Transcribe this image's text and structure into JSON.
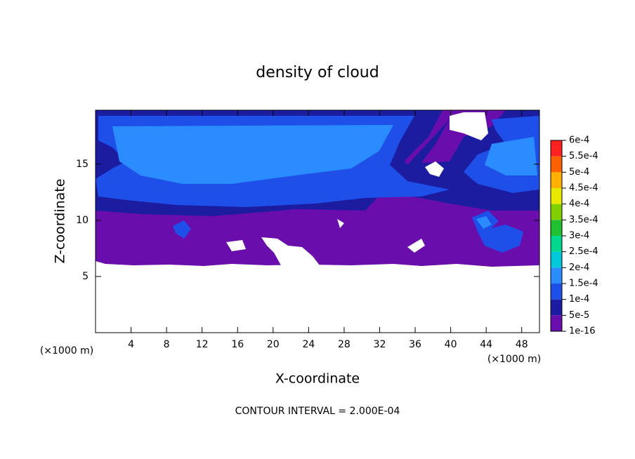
{
  "chart_data": {
    "type": "contour",
    "title": "density of cloud",
    "xlabel": "X-coordinate",
    "ylabel": "Z-coordinate",
    "unit": "(×1000 m)",
    "footer": "CONTOUR INTERVAL = 2.000E-04",
    "xlim": [
      0,
      50
    ],
    "ylim": [
      0,
      19.8
    ],
    "xticks": [
      4,
      8,
      12,
      16,
      20,
      24,
      28,
      32,
      36,
      40,
      44,
      48
    ],
    "yticks": [
      5,
      10,
      15
    ],
    "colorbar": {
      "levels": [
        {
          "value": 1e-16,
          "label": "1e-16"
        },
        {
          "value": 5e-05,
          "label": "5e-5"
        },
        {
          "value": 0.0001,
          "label": "1e-4"
        },
        {
          "value": 0.00015,
          "label": "1.5e-4"
        },
        {
          "value": 0.0002,
          "label": "2e-4"
        },
        {
          "value": 0.00025,
          "label": "2.5e-4"
        },
        {
          "value": 0.0003,
          "label": "3e-4"
        },
        {
          "value": 0.00035,
          "label": "3.5e-4"
        },
        {
          "value": 0.0004,
          "label": "4e-4"
        },
        {
          "value": 0.00045,
          "label": "4.5e-4"
        },
        {
          "value": 0.0005,
          "label": "5e-4"
        },
        {
          "value": 0.00055,
          "label": "5.5e-4"
        },
        {
          "value": 0.0006,
          "label": "6e-4"
        }
      ],
      "colors": [
        "#6a0dad",
        "#1c1ca0",
        "#1e4fe8",
        "#2a8cff",
        "#00c8d8",
        "#00d890",
        "#20c030",
        "#80d000",
        "#e8e800",
        "#ffb000",
        "#ff6000",
        "#ff2020"
      ]
    }
  }
}
